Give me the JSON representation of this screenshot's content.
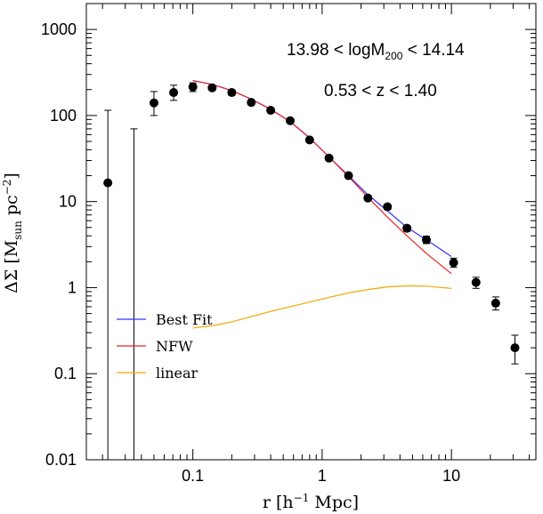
{
  "chart_data": {
    "type": "scatter",
    "xlabel": {
      "pre": "r  [h",
      "sup": "−1",
      "post": " Mpc]"
    },
    "ylabel": {
      "pre": "ΔΣ  [M",
      "sub": "sun",
      "mid": "  pc",
      "sup": "−2",
      "post": "]"
    },
    "xscale": "log",
    "yscale": "log",
    "xlim": [
      0.015,
      45
    ],
    "ylim": [
      0.01,
      2000
    ],
    "xticks": [
      {
        "value": 0.1,
        "label": "0.1"
      },
      {
        "value": 1,
        "label": "1"
      },
      {
        "value": 10,
        "label": "10"
      }
    ],
    "yticks": [
      {
        "value": 0.01,
        "label": "0.01"
      },
      {
        "value": 0.1,
        "label": "0.1"
      },
      {
        "value": 1,
        "label": "1"
      },
      {
        "value": 10,
        "label": "10"
      },
      {
        "value": 100,
        "label": "100"
      },
      {
        "value": 1000,
        "label": "1000"
      }
    ],
    "annotations": [
      {
        "pre": "13.98  <  logM",
        "sub": "200",
        "post": "  <  14.14"
      },
      {
        "pre": "0.53  <  z  <  1.40",
        "sub": "",
        "post": ""
      }
    ],
    "legend": {
      "placement": "lower-left",
      "entries": [
        {
          "name": "Best Fit",
          "color": "#3333ff"
        },
        {
          "name": "NFW",
          "color": "#ee2222"
        },
        {
          "name": "linear",
          "color": "#f0a800"
        }
      ]
    },
    "points": [
      {
        "x": 0.022,
        "y": 16.5,
        "ylow": 0.01,
        "yhigh": 115
      },
      {
        "x": 0.035,
        "y": 0.01,
        "ylow": 0.01,
        "yhigh": 70
      },
      {
        "x": 0.05,
        "y": 140,
        "ylow": 100,
        "yhigh": 190
      },
      {
        "x": 0.071,
        "y": 185,
        "ylow": 150,
        "yhigh": 225
      },
      {
        "x": 0.1,
        "y": 215,
        "ylow": 190,
        "yhigh": 240
      },
      {
        "x": 0.141,
        "y": 210,
        "ylow": 195,
        "yhigh": 225
      },
      {
        "x": 0.2,
        "y": 185,
        "ylow": 172,
        "yhigh": 198
      },
      {
        "x": 0.283,
        "y": 142,
        "ylow": 133,
        "yhigh": 151
      },
      {
        "x": 0.4,
        "y": 115,
        "ylow": 108,
        "yhigh": 122
      },
      {
        "x": 0.566,
        "y": 87,
        "ylow": 82,
        "yhigh": 92
      },
      {
        "x": 0.8,
        "y": 52,
        "ylow": 49,
        "yhigh": 55
      },
      {
        "x": 1.13,
        "y": 32,
        "ylow": 30,
        "yhigh": 34
      },
      {
        "x": 1.6,
        "y": 20,
        "ylow": 18.8,
        "yhigh": 21.2
      },
      {
        "x": 2.26,
        "y": 11,
        "ylow": 10.2,
        "yhigh": 11.8
      },
      {
        "x": 3.2,
        "y": 8.7,
        "ylow": 8.1,
        "yhigh": 9.3
      },
      {
        "x": 4.53,
        "y": 4.9,
        "ylow": 4.5,
        "yhigh": 5.3
      },
      {
        "x": 6.4,
        "y": 3.6,
        "ylow": 3.25,
        "yhigh": 3.95
      },
      {
        "x": 10.4,
        "y": 1.95,
        "ylow": 1.72,
        "yhigh": 2.2
      },
      {
        "x": 15.5,
        "y": 1.15,
        "ylow": 0.98,
        "yhigh": 1.32
      },
      {
        "x": 22.0,
        "y": 0.66,
        "ylow": 0.55,
        "yhigh": 0.78
      },
      {
        "x": 31.0,
        "y": 0.2,
        "ylow": 0.13,
        "yhigh": 0.28
      }
    ],
    "series": [
      {
        "name": "Best Fit",
        "color": "#3333ff",
        "x": [
          0.1,
          0.141,
          0.2,
          0.283,
          0.4,
          0.566,
          0.8,
          1.13,
          1.6,
          2.26,
          3.2,
          4.53,
          6.4,
          10
        ],
        "y": [
          255,
          230,
          195,
          155,
          118,
          85,
          55,
          33,
          20,
          12,
          7.8,
          5,
          3.6,
          2.3
        ]
      },
      {
        "name": "NFW",
        "color": "#ee2222",
        "x": [
          0.1,
          0.141,
          0.2,
          0.283,
          0.4,
          0.566,
          0.8,
          1.13,
          1.6,
          2.26,
          3.2,
          4.53,
          6.4,
          10
        ],
        "y": [
          255,
          230,
          195,
          155,
          118,
          85,
          55,
          33,
          19.5,
          11.2,
          6.6,
          4.0,
          2.5,
          1.45
        ]
      },
      {
        "name": "linear",
        "color": "#f0a800",
        "x": [
          0.1,
          0.141,
          0.2,
          0.283,
          0.4,
          0.566,
          0.8,
          1.13,
          1.6,
          2.26,
          3.2,
          4.53,
          6.4,
          10
        ],
        "y": [
          0.34,
          0.36,
          0.4,
          0.46,
          0.53,
          0.6,
          0.68,
          0.77,
          0.87,
          0.95,
          1.02,
          1.05,
          1.04,
          0.98
        ]
      }
    ]
  }
}
